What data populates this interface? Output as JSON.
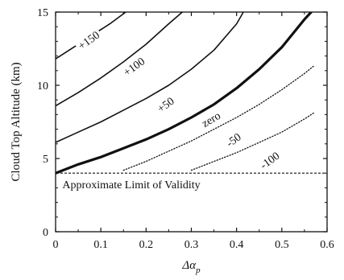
{
  "chart_data": {
    "type": "line",
    "title": "",
    "xlabel": "Δα",
    "xlabel_sub": "p",
    "ylabel": "Cloud Top Altitude (km)",
    "xlim": [
      0,
      0.6
    ],
    "ylim": [
      0,
      15
    ],
    "x_ticks": [
      {
        "value": 0,
        "label": "0"
      },
      {
        "value": 0.1,
        "label": "0.1"
      },
      {
        "value": 0.2,
        "label": "0.2"
      },
      {
        "value": 0.3,
        "label": "0.3"
      },
      {
        "value": 0.4,
        "label": "0.4"
      },
      {
        "value": 0.5,
        "label": "0.5"
      },
      {
        "value": 0.6,
        "label": "0.6"
      }
    ],
    "y_ticks": [
      {
        "value": 0,
        "label": "0"
      },
      {
        "value": 5,
        "label": "5"
      },
      {
        "value": 10,
        "label": "10"
      },
      {
        "value": 15,
        "label": "15"
      }
    ],
    "grid": false,
    "series": [
      {
        "name": "+150",
        "style": "solid",
        "weight": "normal",
        "x": [
          0,
          0.04,
          0.08,
          0.12,
          0.155
        ],
        "y": [
          11.8,
          12.6,
          13.4,
          14.2,
          15
        ]
      },
      {
        "name": "+100",
        "style": "solid",
        "weight": "normal",
        "x": [
          0,
          0.05,
          0.1,
          0.15,
          0.2,
          0.25,
          0.28
        ],
        "y": [
          8.6,
          9.5,
          10.5,
          11.6,
          12.8,
          14.2,
          15
        ]
      },
      {
        "name": "+50",
        "style": "solid",
        "weight": "normal",
        "x": [
          0,
          0.05,
          0.1,
          0.15,
          0.2,
          0.25,
          0.3,
          0.35,
          0.4,
          0.415
        ],
        "y": [
          6.1,
          6.8,
          7.5,
          8.3,
          9.1,
          10.0,
          11.1,
          12.4,
          14.2,
          15
        ]
      },
      {
        "name": "zero",
        "style": "solid",
        "weight": "bold",
        "x": [
          0,
          0.05,
          0.1,
          0.15,
          0.2,
          0.25,
          0.3,
          0.35,
          0.4,
          0.45,
          0.5,
          0.55,
          0.565
        ],
        "y": [
          4.0,
          4.6,
          5.1,
          5.7,
          6.3,
          7.0,
          7.8,
          8.7,
          9.8,
          11.1,
          12.6,
          14.5,
          15
        ]
      },
      {
        "name": "-50",
        "style": "dotted",
        "weight": "normal",
        "x": [
          0.15,
          0.2,
          0.25,
          0.3,
          0.35,
          0.4,
          0.45,
          0.5,
          0.55,
          0.57
        ],
        "y": [
          4.2,
          4.8,
          5.5,
          6.2,
          7.0,
          7.8,
          8.7,
          9.7,
          10.8,
          11.3
        ]
      },
      {
        "name": "-100",
        "style": "dotted",
        "weight": "normal",
        "x": [
          0.3,
          0.35,
          0.4,
          0.45,
          0.5,
          0.55,
          0.57
        ],
        "y": [
          4.2,
          4.8,
          5.4,
          6.1,
          6.8,
          7.7,
          8.1
        ]
      }
    ],
    "reference_lines": [
      {
        "type": "horizontal",
        "y": 4.0,
        "style": "dashed",
        "label": "Approximate Limit of Validity"
      }
    ],
    "contour_labels": [
      {
        "text": "+150",
        "x": 0.075,
        "y": 13.0,
        "angle": -36
      },
      {
        "text": "+100",
        "x": 0.175,
        "y": 11.2,
        "angle": -36
      },
      {
        "text": "+50",
        "x": 0.245,
        "y": 8.6,
        "angle": -36
      },
      {
        "text": "zero",
        "x": 0.345,
        "y": 7.6,
        "angle": -30
      },
      {
        "text": "-50",
        "x": 0.395,
        "y": 6.2,
        "angle": -36
      },
      {
        "text": "-100",
        "x": 0.475,
        "y": 4.8,
        "angle": -36
      }
    ]
  }
}
